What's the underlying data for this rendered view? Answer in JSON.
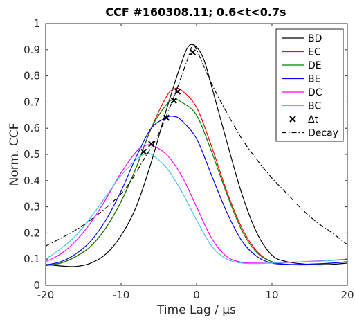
{
  "chart_data": {
    "type": "line",
    "title": "CCF #160308.11; 0.6<t<0.7s",
    "xlabel": "Time Lag / μs",
    "ylabel": "Norm. CCF",
    "xlim": [
      -20,
      20
    ],
    "ylim": [
      0,
      1
    ],
    "xticks": [
      -20,
      -10,
      0,
      10,
      20
    ],
    "xtick_labels": [
      "-20",
      "-10",
      "0",
      "10",
      "20"
    ],
    "yticks": [
      0,
      0.1,
      0.2,
      0.3,
      0.4,
      0.5,
      0.6,
      0.7,
      0.8,
      0.9,
      1
    ],
    "ytick_labels": [
      "0",
      "0.1",
      "0.2",
      "0.3",
      "0.4",
      "0.5",
      "0.6",
      "0.7",
      "0.8",
      "0.9",
      "1"
    ],
    "grid": false,
    "legend_position": "top-right",
    "series": [
      {
        "name": "BD",
        "color": "#000000",
        "style": "solid",
        "x": [
          -20,
          -18,
          -16,
          -14,
          -12,
          -10,
          -8,
          -6,
          -4,
          -2,
          -1,
          0,
          1,
          2,
          4,
          6,
          8,
          10,
          12,
          14,
          16,
          18,
          20
        ],
        "y": [
          0.08,
          0.074,
          0.072,
          0.085,
          0.12,
          0.19,
          0.3,
          0.47,
          0.67,
          0.85,
          0.915,
          0.91,
          0.86,
          0.76,
          0.55,
          0.35,
          0.2,
          0.115,
          0.09,
          0.082,
          0.078,
          0.08,
          0.085
        ]
      },
      {
        "name": "EC",
        "color": "#ff0000",
        "style": "solid",
        "x": [
          -20,
          -18,
          -16,
          -14,
          -12,
          -10,
          -8,
          -6,
          -4,
          -3,
          -2,
          0,
          2,
          4,
          6,
          8,
          10,
          12,
          14,
          16,
          18,
          20
        ],
        "y": [
          0.075,
          0.085,
          0.11,
          0.15,
          0.22,
          0.32,
          0.45,
          0.6,
          0.72,
          0.75,
          0.745,
          0.68,
          0.53,
          0.36,
          0.22,
          0.13,
          0.09,
          0.08,
          0.078,
          0.08,
          0.085,
          0.09
        ]
      },
      {
        "name": "DE",
        "color": "#008000",
        "style": "solid",
        "x": [
          -20,
          -18,
          -16,
          -14,
          -12,
          -10,
          -8,
          -6,
          -4,
          -3,
          -2,
          0,
          2,
          4,
          6,
          8,
          10,
          12,
          14,
          16,
          18,
          20
        ],
        "y": [
          0.075,
          0.085,
          0.11,
          0.15,
          0.22,
          0.32,
          0.45,
          0.6,
          0.69,
          0.71,
          0.7,
          0.65,
          0.51,
          0.35,
          0.21,
          0.125,
          0.09,
          0.08,
          0.078,
          0.08,
          0.085,
          0.09
        ]
      },
      {
        "name": "BE",
        "color": "#0000ff",
        "style": "solid",
        "x": [
          -20,
          -18,
          -16,
          -14,
          -12,
          -10,
          -8,
          -6,
          -4,
          -3,
          -2,
          0,
          2,
          4,
          6,
          8,
          10,
          12,
          14,
          16,
          18,
          20
        ],
        "y": [
          0.078,
          0.09,
          0.12,
          0.17,
          0.25,
          0.36,
          0.49,
          0.6,
          0.64,
          0.645,
          0.63,
          0.56,
          0.42,
          0.28,
          0.17,
          0.11,
          0.085,
          0.08,
          0.08,
          0.082,
          0.085,
          0.09
        ]
      },
      {
        "name": "DC",
        "color": "#ff00ff",
        "style": "solid",
        "x": [
          -20,
          -18,
          -16,
          -14,
          -12,
          -10,
          -8,
          -7,
          -6,
          -4,
          -2,
          0,
          2,
          4,
          6,
          8,
          10,
          12,
          14,
          16,
          18,
          20
        ],
        "y": [
          0.09,
          0.12,
          0.17,
          0.24,
          0.33,
          0.43,
          0.51,
          0.53,
          0.535,
          0.5,
          0.42,
          0.3,
          0.18,
          0.11,
          0.088,
          0.085,
          0.085,
          0.087,
          0.09,
          0.093,
          0.096,
          0.1
        ]
      },
      {
        "name": "BC",
        "color": "#4dbeee",
        "style": "solid",
        "x": [
          -20,
          -18,
          -16,
          -14,
          -12,
          -10,
          -8,
          -7,
          -6,
          -4,
          -2,
          0,
          2,
          4,
          6,
          8,
          10,
          12,
          14,
          16,
          18,
          20
        ],
        "y": [
          0.1,
          0.14,
          0.19,
          0.26,
          0.34,
          0.42,
          0.48,
          0.5,
          0.5,
          0.45,
          0.36,
          0.25,
          0.15,
          0.1,
          0.085,
          0.083,
          0.085,
          0.088,
          0.09,
          0.092,
          0.095,
          0.098
        ]
      },
      {
        "name": "Decay",
        "color": "#000000",
        "style": "dashdot",
        "x": [
          -20,
          -15,
          -10,
          -7,
          -5,
          -3,
          -1,
          -0.5,
          0,
          2,
          4,
          6,
          8,
          10,
          12,
          14,
          16,
          18,
          20
        ],
        "y": [
          0.15,
          0.23,
          0.35,
          0.48,
          0.58,
          0.72,
          0.88,
          0.92,
          0.9,
          0.77,
          0.66,
          0.56,
          0.48,
          0.41,
          0.35,
          0.29,
          0.24,
          0.2,
          0.155
        ]
      }
    ],
    "markers": {
      "name": "Δt",
      "symbol": "×",
      "color": "#000000",
      "points": [
        {
          "x": -0.5,
          "y": 0.89
        },
        {
          "x": -2.5,
          "y": 0.74
        },
        {
          "x": -3,
          "y": 0.705
        },
        {
          "x": -4,
          "y": 0.64
        },
        {
          "x": -6,
          "y": 0.54
        },
        {
          "x": -7,
          "y": 0.51
        }
      ]
    },
    "legend": [
      "BD",
      "EC",
      "DE",
      "BE",
      "DC",
      "BC",
      "Δt",
      "Decay"
    ]
  }
}
